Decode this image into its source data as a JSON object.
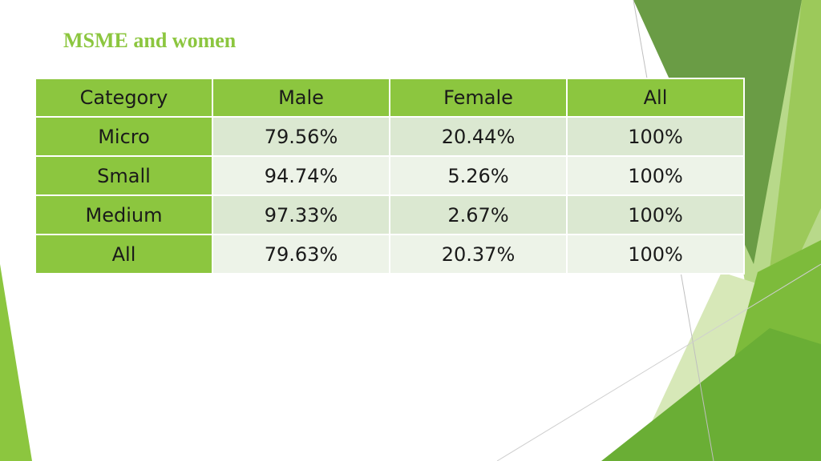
{
  "slide": {
    "title": "MSME and women"
  },
  "table": {
    "headers": [
      "Category",
      "Male",
      "Female",
      "All"
    ],
    "rows": [
      {
        "category": "Micro",
        "male": "79.56%",
        "female": "20.44%",
        "all": "100%"
      },
      {
        "category": "Small",
        "male": "94.74%",
        "female": "5.26%",
        "all": "100%"
      },
      {
        "category": "Medium",
        "male": "97.33%",
        "female": "2.67%",
        "all": "100%"
      },
      {
        "category": "All",
        "male": "79.63%",
        "female": "20.37%",
        "all": "100%"
      }
    ]
  },
  "colors": {
    "accent": "#8cc63f",
    "row_odd": "#dbe8d1",
    "row_even": "#edf3e8"
  }
}
